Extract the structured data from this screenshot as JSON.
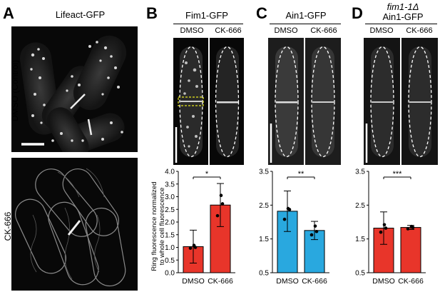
{
  "panels": {
    "A": {
      "letter": "A",
      "title": "Lifeact-GFP",
      "row_labels": [
        "DMSO (Control)",
        "CK-666"
      ]
    },
    "B": {
      "letter": "B",
      "title": "Fim1-GFP",
      "conditions": [
        "DMSO",
        "CK-666"
      ]
    },
    "C": {
      "letter": "C",
      "title": "Ain1-GFP",
      "conditions": [
        "DMSO",
        "CK-666"
      ]
    },
    "D": {
      "letter": "D",
      "title_line1": "fim1-1Δ",
      "title_line2": "Ain1-GFP",
      "conditions": [
        "DMSO",
        "CK-666"
      ]
    }
  },
  "y_axis_label_line1": "Ring fluorescence normalized",
  "y_axis_label_line2": "to whole cell fluorescence",
  "colors": {
    "dmso_B": "#e8352a",
    "ck666_B": "#e8352a",
    "dmso_C": "#29a8df",
    "ck666_C": "#29a8df",
    "dmso_D": "#e8352a",
    "ck666_D": "#e8352a",
    "roi_box": "#e6e61e"
  },
  "chart_data": [
    {
      "type": "bar",
      "panel": "B",
      "categories": [
        "DMSO",
        "CK-666"
      ],
      "values": [
        1.03,
        2.67
      ],
      "error": [
        0.65,
        0.85
      ],
      "points": [
        [
          0.97,
          1.0,
          1.08
        ],
        [
          2.25,
          2.72,
          3.05
        ]
      ],
      "yticks": [
        "0.0",
        "0.5",
        "1.0",
        "1.5",
        "2.0",
        "2.5",
        "3.0",
        "3.5",
        "4.0"
      ],
      "ylim": [
        0,
        4.0
      ],
      "significance": "*",
      "bar_color": "#e8352a"
    },
    {
      "type": "bar",
      "panel": "C",
      "categories": [
        "DMSO",
        "CK-666"
      ],
      "values": [
        2.32,
        1.75
      ],
      "error": [
        0.6,
        0.27
      ],
      "points": [
        [
          2.08,
          2.37,
          2.4
        ],
        [
          1.62,
          1.72,
          1.88
        ]
      ],
      "yticks": [
        "0.5",
        "1.5",
        "2.5",
        "3.5"
      ],
      "ylim": [
        0.5,
        3.5
      ],
      "significance": "**",
      "bar_color": "#29a8df"
    },
    {
      "type": "bar",
      "panel": "D",
      "categories": [
        "DMSO",
        "CK-666"
      ],
      "values": [
        1.82,
        1.84
      ],
      "error": [
        0.48,
        0.06
      ],
      "points": [
        [
          1.7,
          1.82,
          1.92
        ],
        [
          1.8,
          1.84,
          1.87
        ]
      ],
      "yticks": [
        "0.5",
        "1.5",
        "2.5",
        "3.5"
      ],
      "ylim": [
        0.5,
        3.5
      ],
      "significance": "***",
      "bar_color": "#e8352a"
    }
  ]
}
